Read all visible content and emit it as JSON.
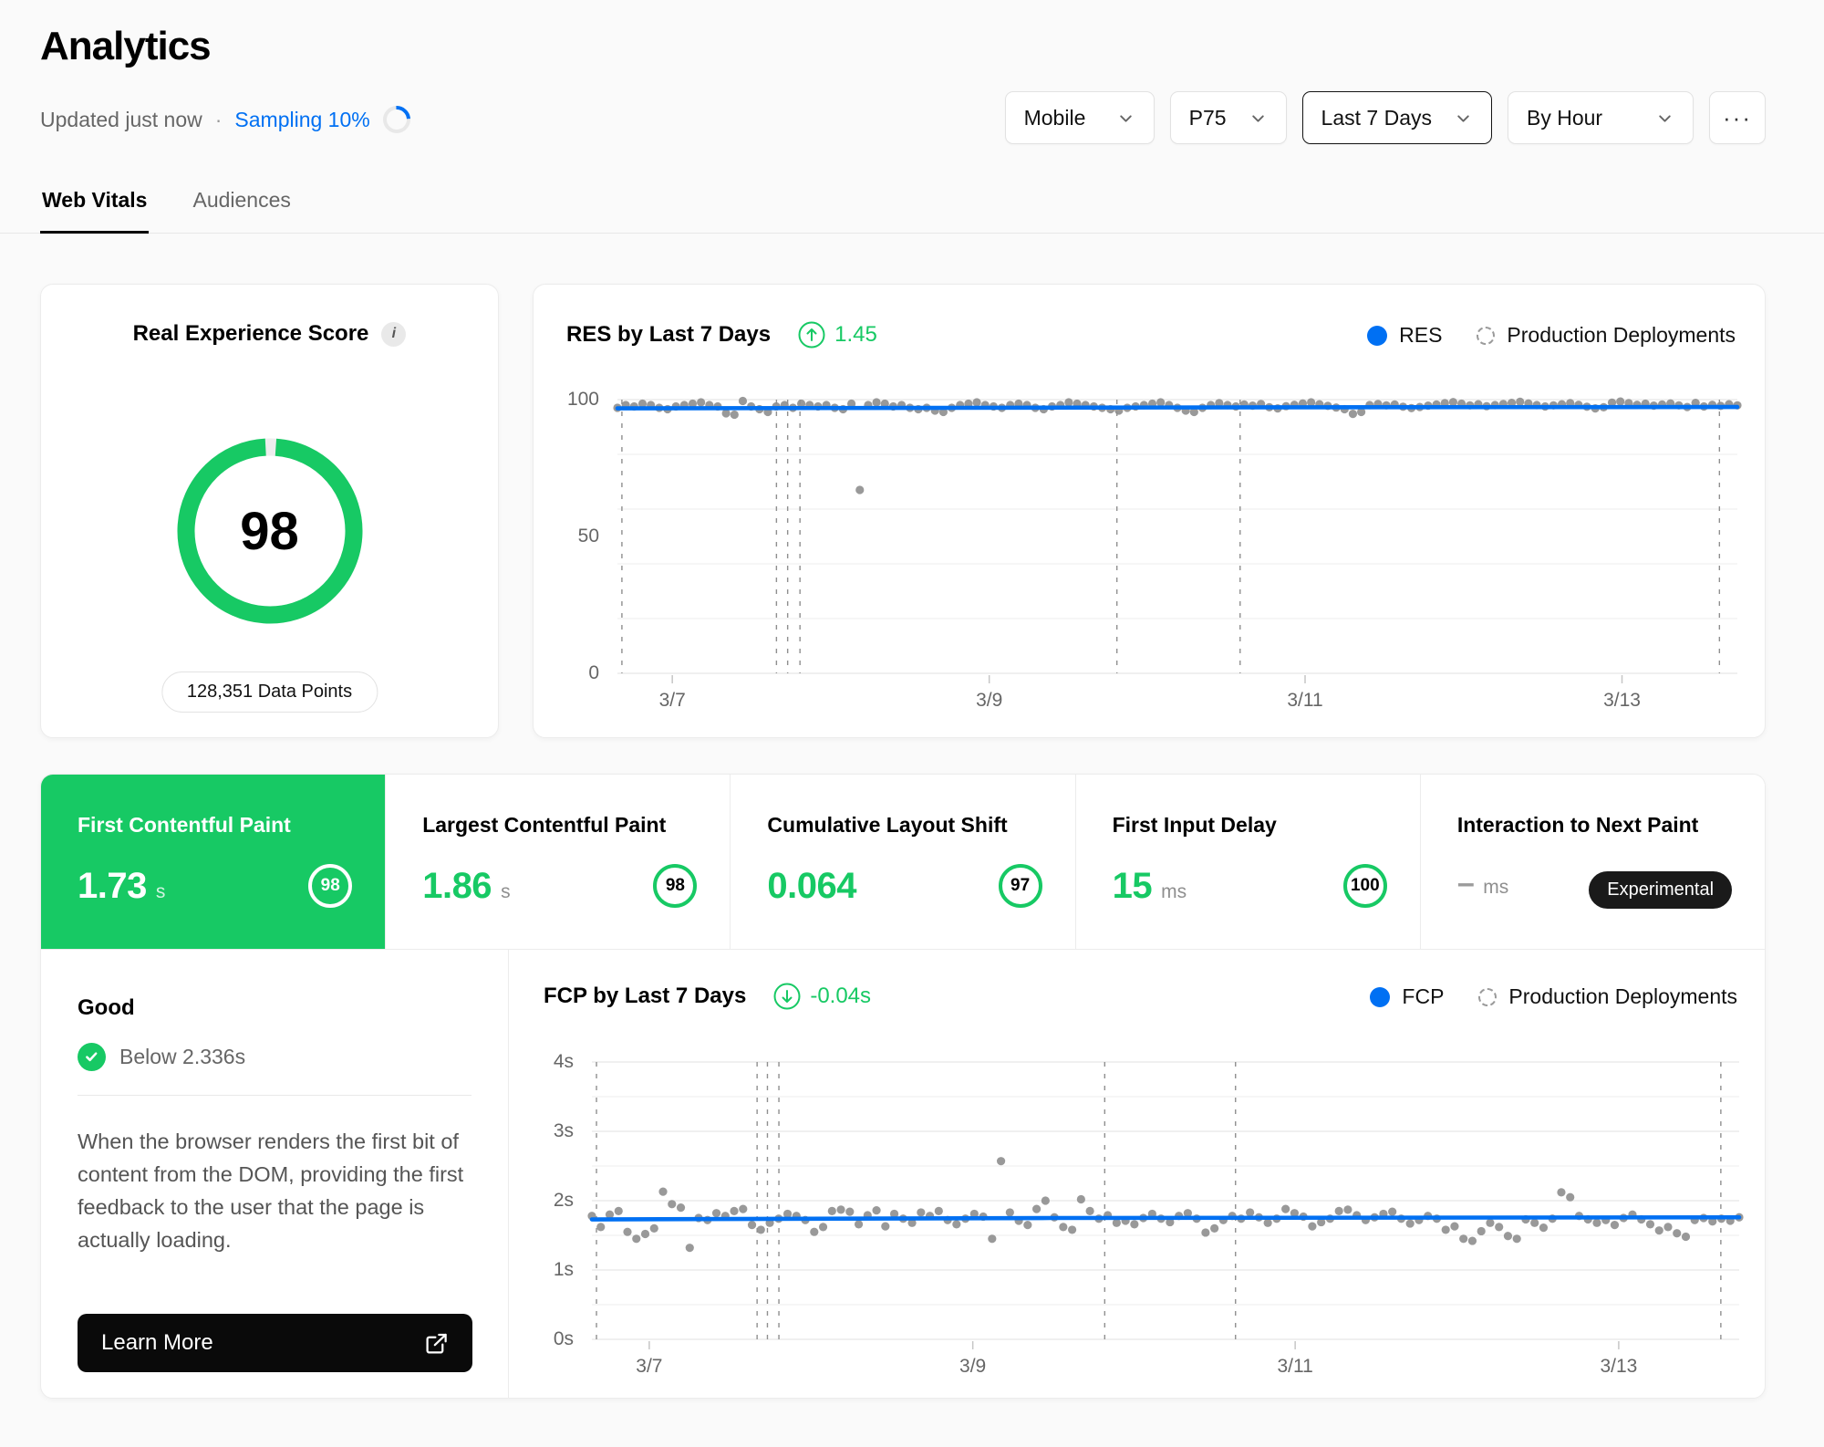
{
  "page": {
    "title": "Analytics",
    "updated": "Updated just now",
    "separator": "·",
    "sampling": "Sampling 10%"
  },
  "controls": {
    "device": "Mobile",
    "percentile": "P75",
    "range": "Last 7 Days",
    "granularity": "By Hour",
    "more": "···"
  },
  "tabs": [
    {
      "label": "Web Vitals",
      "active": true
    },
    {
      "label": "Audiences",
      "active": false
    }
  ],
  "res_card": {
    "title": "Real Experience Score",
    "score": "98",
    "badge": "128,351 Data Points"
  },
  "metrics": [
    {
      "title": "First Contentful Paint",
      "value": "1.73",
      "unit": "s",
      "score": "98",
      "selected": true
    },
    {
      "title": "Largest Contentful Paint",
      "value": "1.86",
      "unit": "s",
      "score": "98",
      "selected": false
    },
    {
      "title": "Cumulative Layout Shift",
      "value": "0.064",
      "unit": "",
      "score": "97",
      "selected": false
    },
    {
      "title": "First Input Delay",
      "value": "15",
      "unit": "ms",
      "score": "100",
      "selected": false
    },
    {
      "title": "Interaction to Next Paint",
      "value": "–",
      "unit": "ms",
      "badge": "Experimental",
      "selected": false
    }
  ],
  "detail": {
    "rating": "Good",
    "threshold": "Below 2.336s",
    "description": "When the browser renders the first bit of content from the DOM, providing the first feedback to the user that the page is actually loading.",
    "learn_more": "Learn More"
  },
  "colors": {
    "accent_blue": "#0070f3",
    "success_green": "#17c964",
    "dot_gray": "#8e8e8e",
    "grid": "#ebebeb",
    "grid_minor": "#f3f3f3",
    "deploy_dash": "#8f8f8f"
  },
  "chart_data": [
    {
      "id": "res",
      "type": "scatter",
      "title": "RES by Last 7 Days",
      "delta": "1.45",
      "delta_direction": "up",
      "legend": [
        "RES",
        "Production Deployments"
      ],
      "x_ticks": [
        {
          "f": 0.049,
          "label": "3/7"
        },
        {
          "f": 0.332,
          "label": "3/9"
        },
        {
          "f": 0.614,
          "label": "3/11"
        },
        {
          "f": 0.897,
          "label": "3/13"
        }
      ],
      "y_axis": {
        "min": 0,
        "max": 100,
        "grid_step": 20,
        "labels": [
          {
            "v": 100,
            "t": "100"
          },
          {
            "v": 50,
            "t": "50"
          },
          {
            "v": 0,
            "t": "0"
          }
        ]
      },
      "deployments": [
        0.004,
        0.142,
        0.152,
        0.163,
        0.446,
        0.556,
        0.984
      ],
      "trend": [
        [
          0,
          96.8
        ],
        [
          0.3,
          97.0
        ],
        [
          0.6,
          97.2
        ],
        [
          1,
          97.3
        ]
      ],
      "points": [
        97,
        98,
        97.5,
        98.5,
        98,
        97,
        96.5,
        97.5,
        98,
        98.5,
        99,
        98,
        97.5,
        95,
        94.5,
        99.5,
        97.5,
        96.5,
        95.5,
        97.5,
        98,
        97,
        98.5,
        98,
        97.5,
        98,
        97,
        96.5,
        98.5,
        67,
        98,
        99,
        98.5,
        97.5,
        98,
        97,
        96.5,
        97,
        96,
        95.5,
        97,
        98,
        98.5,
        99,
        98,
        97.5,
        97,
        98,
        98.5,
        98,
        97,
        96.5,
        97.5,
        98,
        99,
        98.5,
        98,
        97.5,
        97,
        96.5,
        96,
        97,
        97.5,
        98,
        98.5,
        99,
        98,
        97,
        96,
        95.5,
        97,
        98,
        98.7,
        98,
        97.5,
        98.2,
        97.8,
        98.4,
        97.2,
        96.8,
        97.6,
        98.1,
        98.6,
        99,
        98.3,
        97.7,
        97.1,
        96.5,
        94.8,
        95.5,
        98,
        98.4,
        97.9,
        98.2,
        97.4,
        96.9,
        97.3,
        97.8,
        98.2,
        98.7,
        99.1,
        98.5,
        97.9,
        98.3,
        97.6,
        98,
        98.4,
        98.8,
        99.2,
        98.6,
        98,
        97.5,
        97.9,
        98.3,
        98.7,
        98.1,
        97.4,
        96.8,
        97.2,
        98.9,
        99.3,
        98.7,
        98.1,
        98.5,
        97.8,
        98.2,
        98.6,
        97.9,
        97.3,
        98.8,
        97.5,
        98.1,
        97.7,
        98.3,
        97.9
      ]
    },
    {
      "id": "fcp",
      "type": "scatter",
      "title": "FCP by Last 7 Days",
      "delta": "-0.04s",
      "delta_direction": "down",
      "legend": [
        "FCP",
        "Production Deployments"
      ],
      "x_ticks": [
        {
          "f": 0.05,
          "label": "3/7"
        },
        {
          "f": 0.332,
          "label": "3/9"
        },
        {
          "f": 0.613,
          "label": "3/11"
        },
        {
          "f": 0.895,
          "label": "3/13"
        }
      ],
      "y_axis": {
        "min": 0,
        "max": 4,
        "grid_step": 0.5,
        "labels": [
          {
            "v": 4,
            "t": "4s"
          },
          {
            "v": 3,
            "t": "3s"
          },
          {
            "v": 2,
            "t": "2s"
          },
          {
            "v": 1,
            "t": "1s"
          },
          {
            "v": 0,
            "t": "0s"
          }
        ]
      },
      "deployments": [
        0.004,
        0.144,
        0.153,
        0.163,
        0.447,
        0.561,
        0.984
      ],
      "trend": [
        [
          0,
          1.73
        ],
        [
          0.4,
          1.75
        ],
        [
          1,
          1.76
        ]
      ],
      "points": [
        1.78,
        1.62,
        1.8,
        1.85,
        1.55,
        1.45,
        1.52,
        1.6,
        2.13,
        1.95,
        1.9,
        1.32,
        1.75,
        1.72,
        1.82,
        1.78,
        1.85,
        1.88,
        1.65,
        1.58,
        1.68,
        1.74,
        1.81,
        1.78,
        1.72,
        1.55,
        1.62,
        1.85,
        1.87,
        1.84,
        1.66,
        1.79,
        1.86,
        1.63,
        1.81,
        1.74,
        1.68,
        1.83,
        1.78,
        1.85,
        1.72,
        1.66,
        1.74,
        1.81,
        1.77,
        1.45,
        2.57,
        1.83,
        1.71,
        1.65,
        1.88,
        2.0,
        1.76,
        1.62,
        1.58,
        2.02,
        1.85,
        1.74,
        1.79,
        1.68,
        1.71,
        1.66,
        1.75,
        1.81,
        1.74,
        1.69,
        1.78,
        1.82,
        1.74,
        1.54,
        1.6,
        1.72,
        1.78,
        1.74,
        1.83,
        1.76,
        1.68,
        1.74,
        1.88,
        1.82,
        1.77,
        1.63,
        1.69,
        1.74,
        1.85,
        1.87,
        1.79,
        1.72,
        1.76,
        1.81,
        1.84,
        1.74,
        1.67,
        1.72,
        1.78,
        1.74,
        1.58,
        1.63,
        1.45,
        1.42,
        1.56,
        1.68,
        1.62,
        1.49,
        1.45,
        1.73,
        1.68,
        1.61,
        1.74,
        2.12,
        2.05,
        1.78,
        1.73,
        1.68,
        1.72,
        1.65,
        1.75,
        1.8,
        1.73,
        1.66,
        1.57,
        1.62,
        1.53,
        1.48,
        1.72,
        1.75,
        1.7,
        1.74,
        1.71,
        1.76
      ]
    }
  ]
}
